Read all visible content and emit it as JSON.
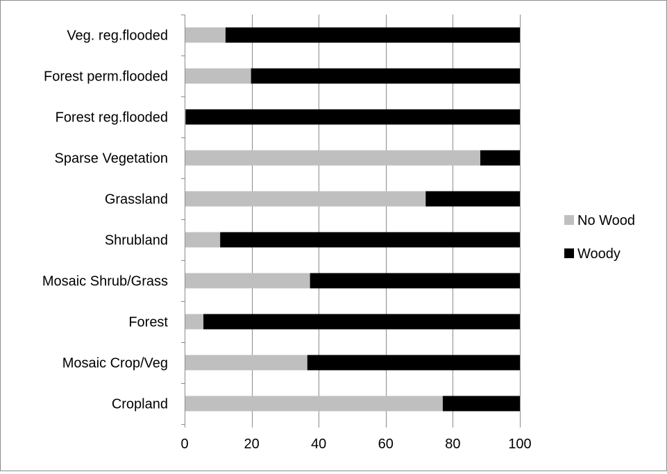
{
  "chart_data": {
    "type": "bar",
    "stacked": true,
    "orientation": "horizontal",
    "title": "",
    "xlabel": "",
    "ylabel": "",
    "xlim": [
      0,
      100
    ],
    "x_ticks": [
      0,
      20,
      40,
      60,
      80,
      100
    ],
    "grid": true,
    "legend_position": "right",
    "categories": [
      "Veg. reg.flooded",
      "Forest perm.flooded",
      "Forest reg.flooded",
      "Sparse Vegetation",
      "Grassland",
      "Shrubland",
      "Mosaic Shrub/Grass",
      "Forest",
      "Mosaic Crop/Veg",
      "Cropland"
    ],
    "series": [
      {
        "name": "No Wood",
        "color": "#bfbfbf",
        "values": [
          12.2,
          19.8,
          0.3,
          88.2,
          71.9,
          10.6,
          37.4,
          5.6,
          36.6,
          77.0
        ]
      },
      {
        "name": "Woody",
        "color": "#000000",
        "values": [
          87.8,
          80.2,
          99.7,
          11.8,
          28.1,
          89.4,
          62.6,
          94.4,
          63.4,
          23.0
        ]
      }
    ]
  }
}
